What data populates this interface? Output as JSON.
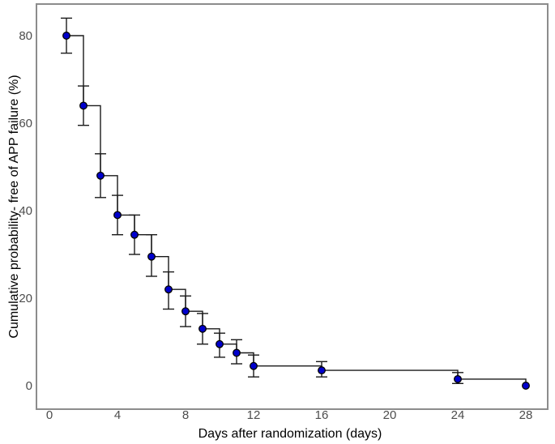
{
  "figure": {
    "background_color": "#ffffff",
    "plot_border_color": "#8c8c8c",
    "curve_color": "#1a1a1a",
    "error_bar_color": "#1a1a1a",
    "point_fill_color": "#0000CD",
    "point_stroke_color": "#000000",
    "tick_label_color": "#4d4d4d"
  },
  "chart_data": {
    "type": "line",
    "subtype": "kaplan-meier-step-curve-with-error-bars",
    "title": "",
    "xlabel": "Days after randomization (days)",
    "ylabel": "Cumulative probability- free of APP failure (%)",
    "x_ticks": [
      0,
      4,
      8,
      12,
      16,
      20,
      24,
      28
    ],
    "y_ticks": [
      0,
      20,
      40,
      60,
      80
    ],
    "xlim": [
      -0.8,
      29.3
    ],
    "ylim": [
      -4.5,
      87.2
    ],
    "grid": false,
    "legend_position": "none",
    "series": [
      {
        "name": "Cumulative probability free of APP failure",
        "marker": "filled-circle",
        "marker_color": "#0000CD",
        "line_color": "#1a1a1a",
        "points": [
          {
            "day": 1,
            "value": 80,
            "ci_low": 76,
            "ci_high": 84
          },
          {
            "day": 2,
            "value": 64,
            "ci_low": 59.5,
            "ci_high": 68.5
          },
          {
            "day": 3,
            "value": 48,
            "ci_low": 43,
            "ci_high": 53
          },
          {
            "day": 4,
            "value": 39,
            "ci_low": 34.5,
            "ci_high": 43.5
          },
          {
            "day": 5,
            "value": 34.5,
            "ci_low": 30,
            "ci_high": 39
          },
          {
            "day": 6,
            "value": 29.5,
            "ci_low": 25,
            "ci_high": 34.5
          },
          {
            "day": 7,
            "value": 22,
            "ci_low": 17.5,
            "ci_high": 26
          },
          {
            "day": 8,
            "value": 17,
            "ci_low": 13.5,
            "ci_high": 20.5
          },
          {
            "day": 9,
            "value": 13,
            "ci_low": 9.5,
            "ci_high": 16.5
          },
          {
            "day": 10,
            "value": 9.5,
            "ci_low": 6.5,
            "ci_high": 12
          },
          {
            "day": 11,
            "value": 7.5,
            "ci_low": 5,
            "ci_high": 10.5
          },
          {
            "day": 12,
            "value": 4.5,
            "ci_low": 2,
            "ci_high": 7
          },
          {
            "day": 16,
            "value": 3.5,
            "ci_low": 2,
            "ci_high": 5.5
          },
          {
            "day": 24,
            "value": 1.5,
            "ci_low": 0.5,
            "ci_high": 3
          },
          {
            "day": 28,
            "value": 0,
            "ci_low": null,
            "ci_high": null
          }
        ]
      }
    ]
  }
}
